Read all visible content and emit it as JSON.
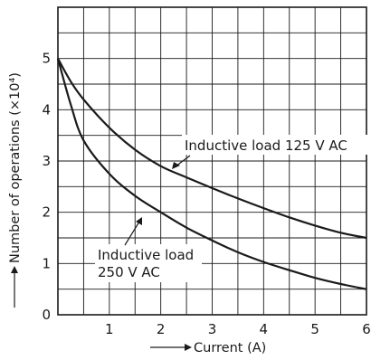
{
  "chart_data": {
    "type": "line",
    "xlabel": "Current (A)",
    "ylabel": "Number of operations (×10⁴)",
    "xlim": [
      0,
      6
    ],
    "ylim": [
      0,
      6
    ],
    "x_ticks": [
      "1",
      "2",
      "3",
      "4",
      "5",
      "6"
    ],
    "y_ticks": [
      "0",
      "1",
      "2",
      "3",
      "4",
      "5"
    ],
    "grid": true,
    "series": [
      {
        "name": "Inductive load 125 V AC",
        "x": [
          0,
          0.25,
          0.5,
          1,
          1.5,
          2,
          2.5,
          3,
          3.5,
          4,
          4.5,
          5,
          5.5,
          6
        ],
        "y": [
          5.0,
          4.55,
          4.2,
          3.65,
          3.22,
          2.9,
          2.68,
          2.47,
          2.27,
          2.08,
          1.9,
          1.74,
          1.6,
          1.5
        ]
      },
      {
        "name": "Inductive load 250 V AC",
        "x": [
          0,
          0.25,
          0.5,
          1,
          1.5,
          2,
          2.5,
          3,
          3.5,
          4,
          4.5,
          5,
          5.5,
          6
        ],
        "y": [
          5.0,
          4.1,
          3.4,
          2.75,
          2.32,
          2.0,
          1.7,
          1.45,
          1.22,
          1.03,
          0.87,
          0.72,
          0.6,
          0.5
        ]
      }
    ],
    "annotations": [
      {
        "lines": [
          "Inductive load 125 V AC"
        ],
        "x": 2.5,
        "y": 2.72
      },
      {
        "lines": [
          "Inductive load",
          "250 V AC"
        ],
        "x": 1.75,
        "y": 1.75
      }
    ]
  }
}
